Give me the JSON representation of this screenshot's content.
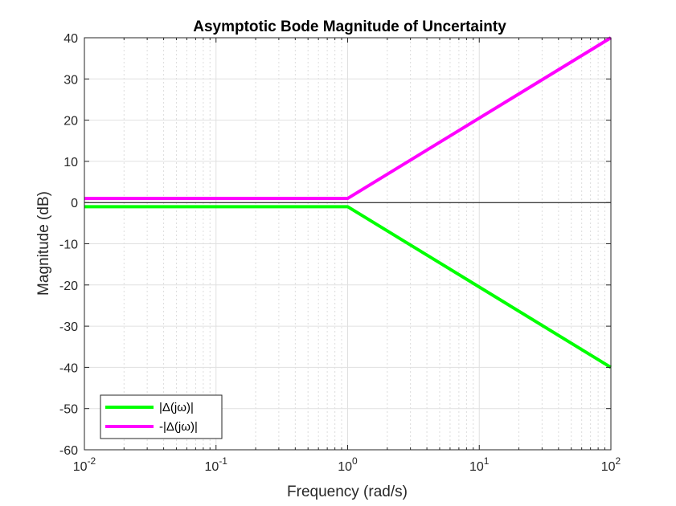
{
  "chart_data": {
    "type": "line",
    "title": "Asymptotic Bode Magnitude of Uncertainty",
    "xlabel": "Frequency (rad/s)",
    "ylabel": "Magnitude (dB)",
    "xscale": "log",
    "xlim": [
      0.01,
      100
    ],
    "ylim": [
      -60,
      40
    ],
    "x_ticks": [
      {
        "value": 0.01,
        "base": "10",
        "exp": "-2"
      },
      {
        "value": 0.1,
        "base": "10",
        "exp": "-1"
      },
      {
        "value": 1,
        "base": "10",
        "exp": "0"
      },
      {
        "value": 10,
        "base": "10",
        "exp": "1"
      },
      {
        "value": 100,
        "base": "10",
        "exp": "2"
      }
    ],
    "y_ticks": [
      "-60",
      "-50",
      "-40",
      "-30",
      "-20",
      "-10",
      "0",
      "10",
      "20",
      "30",
      "40"
    ],
    "grid": true,
    "minor_grid": true,
    "zero_line": true,
    "legend_position": "bottom-left",
    "series": [
      {
        "name": "|Δ(jω)|",
        "color": "#00ff00",
        "x": [
          0.01,
          1,
          100
        ],
        "y": [
          -1,
          -1,
          -40
        ]
      },
      {
        "name": "-|Δ(jω)|",
        "color": "#ff00ff",
        "x": [
          0.01,
          1,
          100
        ],
        "y": [
          1,
          1,
          40
        ]
      }
    ]
  }
}
